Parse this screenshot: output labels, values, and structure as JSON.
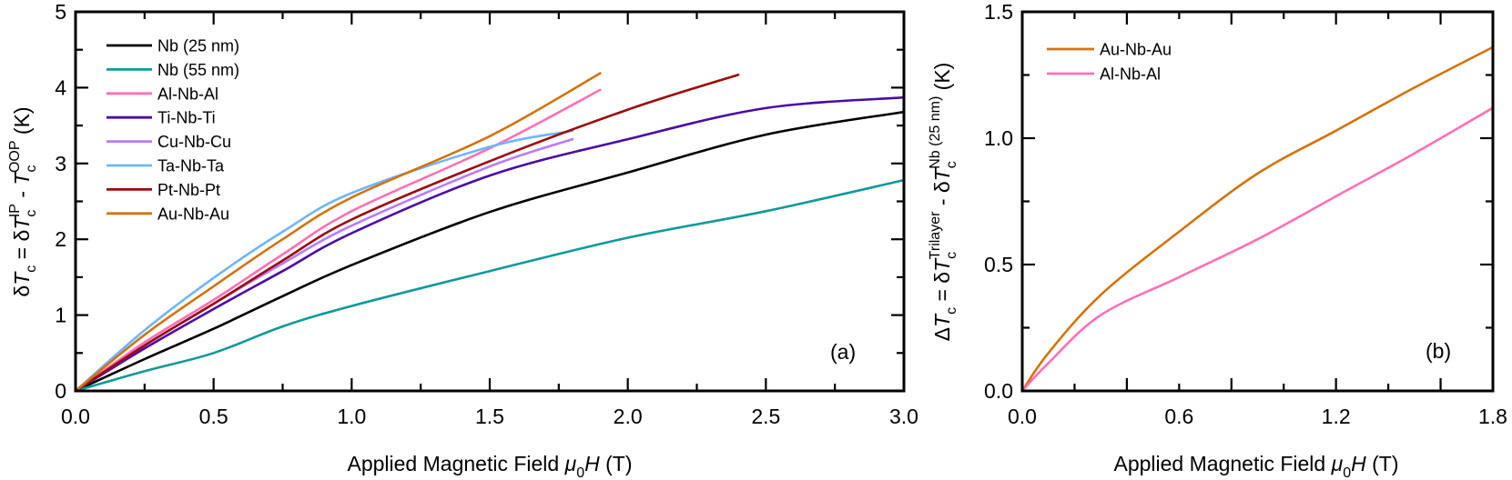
{
  "chart_data": [
    {
      "type": "line",
      "panel_label": "(a)",
      "xlabel": [
        {
          "t": "Applied Magnetic Field "
        },
        {
          "t": "μ",
          "s": "i"
        },
        {
          "t": "0",
          "s": "sub"
        },
        {
          "t": "H",
          "s": "i"
        },
        {
          "t": " (T)"
        }
      ],
      "ylabel": [
        {
          "t": "δ"
        },
        {
          "t": "T",
          "s": "i"
        },
        {
          "t": "c",
          "s": "sub"
        },
        {
          "t": "IP",
          "s": "sup"
        },
        {
          "t": " - "
        },
        {
          "t": "T",
          "s": "i"
        },
        {
          "t": "c",
          "s": "sub"
        },
        {
          "t": "OOP",
          "s": "sup"
        },
        {
          "t": " (K)"
        }
      ],
      "ylabel_prefix": [
        {
          "t": "δ"
        },
        {
          "t": "T",
          "s": "i"
        },
        {
          "t": "c",
          "s": "sub"
        },
        {
          "t": " = "
        }
      ],
      "xlim": [
        0,
        3.0
      ],
      "ylim": [
        0,
        5
      ],
      "xticks": [
        "0.0",
        "0.5",
        "1.0",
        "1.5",
        "2.0",
        "2.5",
        "3.0"
      ],
      "yticks": [
        "0",
        "1",
        "2",
        "3",
        "4",
        "5"
      ],
      "legend_position": "top-left",
      "grid": false,
      "series": [
        {
          "name": "Nb (25 nm)",
          "color": "#000000",
          "x": [
            0,
            0.25,
            0.5,
            0.75,
            1.0,
            1.5,
            2.0,
            2.5,
            3.0
          ],
          "y": [
            0,
            0.42,
            0.82,
            1.25,
            1.66,
            2.36,
            2.88,
            3.38,
            3.68
          ]
        },
        {
          "name": "Nb (55 nm)",
          "color": "#11999a",
          "x": [
            0,
            0.25,
            0.5,
            0.75,
            1.0,
            1.5,
            2.0,
            2.5,
            3.0
          ],
          "y": [
            0,
            0.26,
            0.5,
            0.85,
            1.12,
            1.58,
            2.02,
            2.37,
            2.78
          ]
        },
        {
          "name": "Al-Nb-Al",
          "color": "#ff6fb5",
          "x": [
            0,
            0.25,
            0.5,
            0.75,
            1.0,
            1.5,
            1.9
          ],
          "y": [
            0,
            0.64,
            1.2,
            1.8,
            2.37,
            3.2,
            3.97
          ]
        },
        {
          "name": "Ti-Nb-Ti",
          "color": "#4a0aa6",
          "x": [
            0,
            0.25,
            0.5,
            0.75,
            1.0,
            1.5,
            2.0,
            2.5,
            3.0
          ],
          "y": [
            0,
            0.56,
            1.08,
            1.58,
            2.08,
            2.84,
            3.32,
            3.73,
            3.87
          ]
        },
        {
          "name": "Cu-Nb-Cu",
          "color": "#b77bff",
          "x": [
            0,
            0.25,
            0.5,
            0.75,
            1.0,
            1.5,
            1.8
          ],
          "y": [
            0,
            0.6,
            1.15,
            1.68,
            2.18,
            2.96,
            3.32
          ]
        },
        {
          "name": "Ta-Nb-Ta",
          "color": "#6db6ff",
          "x": [
            0,
            0.25,
            0.5,
            0.75,
            1.0,
            1.5,
            1.8
          ],
          "y": [
            0,
            0.8,
            1.49,
            2.1,
            2.61,
            3.22,
            3.43
          ]
        },
        {
          "name": "Pt-Nb-Pt",
          "color": "#9a0b0b",
          "x": [
            0,
            0.25,
            0.5,
            0.75,
            1.0,
            1.5,
            2.0,
            2.4
          ],
          "y": [
            0,
            0.6,
            1.15,
            1.72,
            2.26,
            3.03,
            3.71,
            4.17
          ]
        },
        {
          "name": "Au-Nb-Au",
          "color": "#d2730d",
          "x": [
            0,
            0.25,
            0.5,
            0.75,
            1.0,
            1.5,
            1.9
          ],
          "y": [
            0,
            0.74,
            1.38,
            2.0,
            2.55,
            3.36,
            4.19
          ]
        }
      ]
    },
    {
      "type": "line",
      "panel_label": "(b)",
      "xlabel": [
        {
          "t": "Applied Magnetic Field "
        },
        {
          "t": "μ",
          "s": "i"
        },
        {
          "t": "0",
          "s": "sub"
        },
        {
          "t": "H",
          "s": "i"
        },
        {
          "t": " (T)"
        }
      ],
      "ylabel": [
        {
          "t": "δ"
        },
        {
          "t": "T",
          "s": "i"
        },
        {
          "t": "c",
          "s": "sub"
        },
        {
          "t": "Trilayer",
          "s": "sup"
        },
        {
          "t": " - δ"
        },
        {
          "t": "T",
          "s": "i"
        },
        {
          "t": "c",
          "s": "sub"
        },
        {
          "t": "Nb (25 nm)",
          "s": "sup"
        },
        {
          "t": " (K)"
        }
      ],
      "ylabel_prefix": [
        {
          "t": "Δ"
        },
        {
          "t": "T",
          "s": "i"
        },
        {
          "t": "c",
          "s": "sub"
        },
        {
          "t": " = "
        }
      ],
      "xlim": [
        0,
        1.8
      ],
      "ylim": [
        0,
        1.5
      ],
      "xticks": [
        "0.0",
        "0.6",
        "1.2",
        "1.8"
      ],
      "yticks": [
        "0.0",
        "0.5",
        "1.0",
        "1.5"
      ],
      "legend_position": "top-left",
      "grid": false,
      "series": [
        {
          "name": "Au-Nb-Au",
          "color": "#d2730d",
          "x": [
            0,
            0.1,
            0.3,
            0.6,
            0.9,
            1.2,
            1.5,
            1.8
          ],
          "y": [
            0,
            0.15,
            0.38,
            0.63,
            0.86,
            1.03,
            1.2,
            1.36
          ]
        },
        {
          "name": "Al-Nb-Al",
          "color": "#ff6fb5",
          "x": [
            0,
            0.1,
            0.3,
            0.6,
            0.9,
            1.2,
            1.5,
            1.8
          ],
          "y": [
            0,
            0.11,
            0.3,
            0.45,
            0.6,
            0.77,
            0.94,
            1.12
          ]
        }
      ]
    }
  ]
}
